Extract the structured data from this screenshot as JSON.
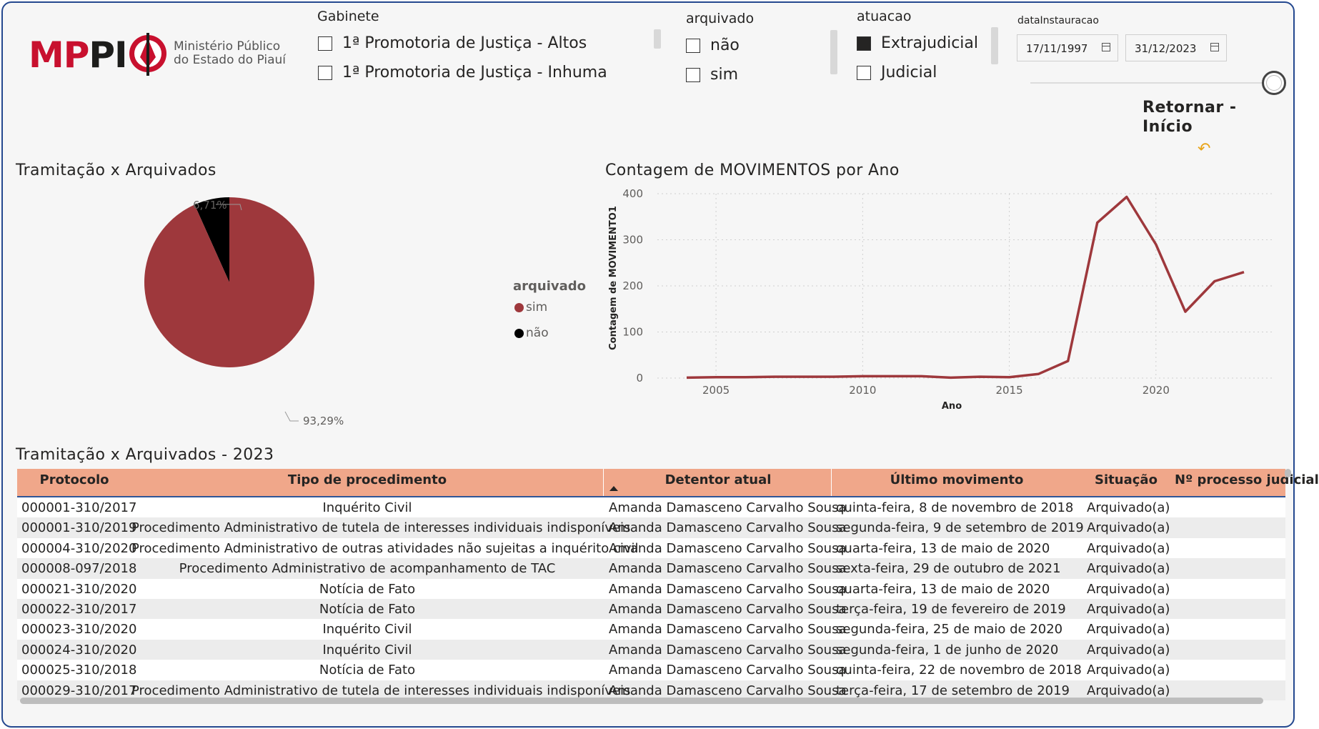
{
  "logo": {
    "brand_mp": "MP",
    "brand_pi": "PI",
    "subtitle_line1": "Ministério Público",
    "subtitle_line2": "do Estado do Piauí"
  },
  "slicers": {
    "gabinete": {
      "title": "Gabinete",
      "items": [
        {
          "label": "1ª Promotoria de Justiça - Altos",
          "checked": false
        },
        {
          "label": "1ª Promotoria de Justiça - Inhuma",
          "checked": false
        }
      ]
    },
    "arquivado": {
      "title": "arquivado",
      "items": [
        {
          "label": "não",
          "checked": false
        },
        {
          "label": "sim",
          "checked": false
        }
      ]
    },
    "atuacao": {
      "title": "atuacao",
      "items": [
        {
          "label": "Extrajudicial",
          "checked": true
        },
        {
          "label": "Judicial",
          "checked": false
        }
      ]
    },
    "data": {
      "title": "dataInstauracao",
      "start": "17/11/1997",
      "end": "31/12/2023"
    }
  },
  "return_button": {
    "line1": "Retornar -",
    "line2": "Início",
    "icon": "return-arrow-icon"
  },
  "pie": {
    "title": "Tramitação x Arquivados",
    "label_small": "6,71%",
    "label_large": "93,29%",
    "legend_title": "arquivado",
    "legend": [
      {
        "label": "sim",
        "color": "#9e383c"
      },
      {
        "label": "não",
        "color": "#000000"
      }
    ]
  },
  "line": {
    "title": "Contagem de MOVIMENTOS por Ano",
    "xlabel": "Ano",
    "ylabel": "Contagem de MOVIMENTO1"
  },
  "chart_data": [
    {
      "type": "pie",
      "title": "Tramitação x Arquivados",
      "legend_title": "arquivado",
      "slices": [
        {
          "label": "sim",
          "value": 93.29,
          "display": "93,29%",
          "color": "#9e383c"
        },
        {
          "label": "não",
          "value": 6.71,
          "display": "6,71%",
          "color": "#000000"
        }
      ]
    },
    {
      "type": "line",
      "title": "Contagem de MOVIMENTOS por Ano",
      "xlabel": "Ano",
      "ylabel": "Contagem de MOVIMENTO1",
      "xlim": [
        2003,
        2024
      ],
      "ylim": [
        0,
        400
      ],
      "xticks": [
        2005,
        2010,
        2015,
        2020
      ],
      "yticks": [
        0,
        100,
        200,
        300,
        400
      ],
      "grid": true,
      "color": "#9e383c",
      "x": [
        2004,
        2005,
        2006,
        2007,
        2008,
        2009,
        2010,
        2011,
        2012,
        2013,
        2014,
        2015,
        2016,
        2017,
        2018,
        2019,
        2020,
        2021,
        2022,
        2023
      ],
      "y": [
        1,
        2,
        2,
        3,
        3,
        3,
        4,
        4,
        4,
        1,
        3,
        2,
        9,
        37,
        337,
        393,
        290,
        144,
        210,
        230
      ]
    }
  ],
  "table": {
    "title": "Tramitação x Arquivados - 2023",
    "columns": [
      "Protocolo",
      "Tipo de procedimento",
      "Detentor atual",
      "Último movimento",
      "Situação",
      "Nº processo judicial"
    ],
    "rows": [
      [
        "000001-310/2017",
        "Inquérito Civil",
        "Amanda Damasceno Carvalho Sousa",
        "quinta-feira, 8 de novembro de 2018",
        "Arquivado(a)",
        ""
      ],
      [
        "000001-310/2019",
        "Procedimento Administrativo de tutela de interesses individuais indisponíveis",
        "Amanda Damasceno Carvalho Sousa",
        "segunda-feira, 9 de setembro de 2019",
        "Arquivado(a)",
        ""
      ],
      [
        "000004-310/2020",
        "Procedimento Administrativo de outras atividades não sujeitas a inquérito civil",
        "Amanda Damasceno Carvalho Sousa",
        "quarta-feira, 13 de maio de 2020",
        "Arquivado(a)",
        ""
      ],
      [
        "000008-097/2018",
        "Procedimento Administrativo de acompanhamento de TAC",
        "Amanda Damasceno Carvalho Sousa",
        "sexta-feira, 29 de outubro de 2021",
        "Arquivado(a)",
        ""
      ],
      [
        "000021-310/2020",
        "Notícia de Fato",
        "Amanda Damasceno Carvalho Sousa",
        "quarta-feira, 13 de maio de 2020",
        "Arquivado(a)",
        ""
      ],
      [
        "000022-310/2017",
        "Notícia de Fato",
        "Amanda Damasceno Carvalho Sousa",
        "terça-feira, 19 de fevereiro de 2019",
        "Arquivado(a)",
        ""
      ],
      [
        "000023-310/2020",
        "Inquérito Civil",
        "Amanda Damasceno Carvalho Sousa",
        "segunda-feira, 25 de maio de 2020",
        "Arquivado(a)",
        ""
      ],
      [
        "000024-310/2020",
        "Inquérito Civil",
        "Amanda Damasceno Carvalho Sousa",
        "segunda-feira, 1 de junho de 2020",
        "Arquivado(a)",
        ""
      ],
      [
        "000025-310/2018",
        "Notícia de Fato",
        "Amanda Damasceno Carvalho Sousa",
        "quinta-feira, 22 de novembro de 2018",
        "Arquivado(a)",
        ""
      ],
      [
        "000029-310/2017",
        "Procedimento Administrativo de tutela de interesses individuais indisponíveis",
        "Amanda Damasceno Carvalho Sousa",
        "terça-feira, 17 de setembro de 2019",
        "Arquivado(a)",
        ""
      ]
    ]
  },
  "colors": {
    "accent": "#9e383c",
    "header": "#f0a78a",
    "frame": "#24488f"
  }
}
